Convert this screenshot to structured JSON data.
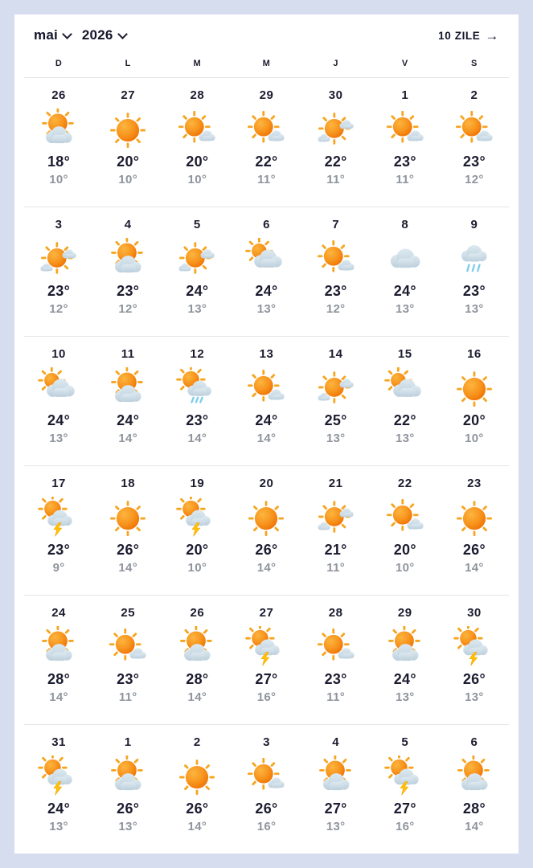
{
  "header": {
    "month": "mai",
    "year": "2026",
    "forecast_link": "10 ZILE",
    "arrow": "→"
  },
  "weekdays": [
    "D",
    "L",
    "M",
    "M",
    "J",
    "V",
    "S"
  ],
  "weeks": [
    [
      {
        "day": "26",
        "icon": "partly-cloudy",
        "high": "18°",
        "low": "10°"
      },
      {
        "day": "27",
        "icon": "sunny",
        "high": "20°",
        "low": "10°"
      },
      {
        "day": "28",
        "icon": "mostly-sunny",
        "high": "20°",
        "low": "10°"
      },
      {
        "day": "29",
        "icon": "mostly-sunny",
        "high": "22°",
        "low": "11°"
      },
      {
        "day": "30",
        "icon": "sun-two-clouds",
        "high": "22°",
        "low": "11°"
      },
      {
        "day": "1",
        "icon": "mostly-sunny",
        "high": "23°",
        "low": "11°"
      },
      {
        "day": "2",
        "icon": "mostly-sunny",
        "high": "23°",
        "low": "12°"
      }
    ],
    [
      {
        "day": "3",
        "icon": "sun-two-clouds",
        "high": "23°",
        "low": "12°"
      },
      {
        "day": "4",
        "icon": "partly-cloudy",
        "high": "23°",
        "low": "12°"
      },
      {
        "day": "5",
        "icon": "sun-two-clouds",
        "high": "24°",
        "low": "13°"
      },
      {
        "day": "6",
        "icon": "mostly-cloudy",
        "high": "24°",
        "low": "13°"
      },
      {
        "day": "7",
        "icon": "mostly-sunny",
        "high": "23°",
        "low": "12°"
      },
      {
        "day": "8",
        "icon": "cloudy",
        "high": "24°",
        "low": "13°"
      },
      {
        "day": "9",
        "icon": "rain",
        "high": "23°",
        "low": "13°"
      }
    ],
    [
      {
        "day": "10",
        "icon": "mostly-cloudy",
        "high": "24°",
        "low": "13°"
      },
      {
        "day": "11",
        "icon": "partly-cloudy",
        "high": "24°",
        "low": "14°"
      },
      {
        "day": "12",
        "icon": "sun-shower",
        "high": "23°",
        "low": "14°"
      },
      {
        "day": "13",
        "icon": "mostly-sunny",
        "high": "24°",
        "low": "14°"
      },
      {
        "day": "14",
        "icon": "sun-two-clouds",
        "high": "25°",
        "low": "13°"
      },
      {
        "day": "15",
        "icon": "mostly-cloudy",
        "high": "22°",
        "low": "13°"
      },
      {
        "day": "16",
        "icon": "sunny",
        "high": "20°",
        "low": "10°"
      }
    ],
    [
      {
        "day": "17",
        "icon": "thunder",
        "high": "23°",
        "low": "9°"
      },
      {
        "day": "18",
        "icon": "sunny",
        "high": "26°",
        "low": "14°"
      },
      {
        "day": "19",
        "icon": "thunder",
        "high": "20°",
        "low": "10°"
      },
      {
        "day": "20",
        "icon": "sunny",
        "high": "26°",
        "low": "14°"
      },
      {
        "day": "21",
        "icon": "sun-two-clouds",
        "high": "21°",
        "low": "11°"
      },
      {
        "day": "22",
        "icon": "mostly-sunny",
        "high": "20°",
        "low": "10°"
      },
      {
        "day": "23",
        "icon": "sunny",
        "high": "26°",
        "low": "14°"
      }
    ],
    [
      {
        "day": "24",
        "icon": "partly-cloudy",
        "high": "28°",
        "low": "14°"
      },
      {
        "day": "25",
        "icon": "mostly-sunny",
        "high": "23°",
        "low": "11°"
      },
      {
        "day": "26",
        "icon": "partly-cloudy",
        "high": "28°",
        "low": "14°"
      },
      {
        "day": "27",
        "icon": "thunder",
        "high": "27°",
        "low": "16°"
      },
      {
        "day": "28",
        "icon": "mostly-sunny",
        "high": "23°",
        "low": "11°"
      },
      {
        "day": "29",
        "icon": "partly-cloudy",
        "high": "24°",
        "low": "13°"
      },
      {
        "day": "30",
        "icon": "thunder",
        "high": "26°",
        "low": "13°"
      }
    ],
    [
      {
        "day": "31",
        "icon": "thunder",
        "high": "24°",
        "low": "13°"
      },
      {
        "day": "1",
        "icon": "partly-cloudy",
        "high": "26°",
        "low": "13°"
      },
      {
        "day": "2",
        "icon": "sunny",
        "high": "26°",
        "low": "14°"
      },
      {
        "day": "3",
        "icon": "mostly-sunny",
        "high": "26°",
        "low": "16°"
      },
      {
        "day": "4",
        "icon": "partly-cloudy",
        "high": "27°",
        "low": "13°"
      },
      {
        "day": "5",
        "icon": "thunder",
        "high": "27°",
        "low": "16°"
      },
      {
        "day": "6",
        "icon": "partly-cloudy",
        "high": "28°",
        "low": "14°"
      }
    ]
  ],
  "colors": {
    "page_background": "#d5ddee",
    "card_background": "#ffffff",
    "text_dark": "#1c1c30",
    "text_gray": "#8f949d",
    "sun_core": "#f7941d",
    "sun_light": "#fcb040",
    "sun_deep": "#ee6c00",
    "ray": "#f6a51f",
    "cloud": "#c8d6e1",
    "rain": "#7fcdeb",
    "lightning": "#ffc400"
  }
}
